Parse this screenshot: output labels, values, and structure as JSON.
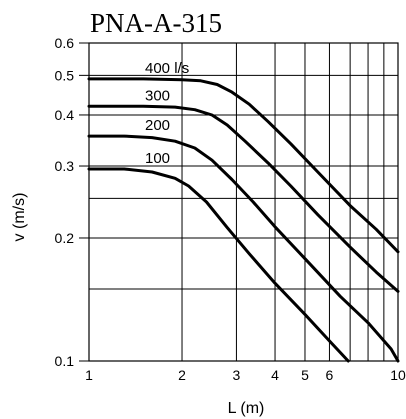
{
  "chart_data": {
    "type": "line",
    "title": "PNA-A-315",
    "xlabel": "L (m)",
    "ylabel": "v (m/s)",
    "xscale": "log",
    "yscale": "log",
    "xlim": [
      1,
      10
    ],
    "ylim": [
      0.1,
      0.6
    ],
    "x_ticks": [
      1,
      2,
      3,
      4,
      5,
      6,
      10
    ],
    "x_tick_labels": [
      "1",
      "2",
      "3",
      "4",
      "5",
      "6",
      "10"
    ],
    "x_grid": [
      1,
      2,
      3,
      4,
      5,
      6,
      7,
      8,
      9,
      10
    ],
    "y_ticks": [
      0.1,
      0.2,
      0.3,
      0.4,
      0.5,
      0.6
    ],
    "y_tick_labels": [
      "0.1",
      "0.2",
      "0.3",
      "0.4",
      "0.5",
      "0.6"
    ],
    "y_grid": [
      0.1,
      0.15,
      0.2,
      0.25,
      0.3,
      0.4,
      0.5,
      0.6
    ],
    "grid": true,
    "series": [
      {
        "name": "400 l/s",
        "x": [
          1,
          1.5,
          2.0,
          2.3,
          2.6,
          2.9,
          3.3,
          3.8,
          4.5,
          5.5,
          7,
          8.5,
          10
        ],
        "y": [
          0.49,
          0.49,
          0.488,
          0.485,
          0.475,
          0.455,
          0.425,
          0.385,
          0.34,
          0.29,
          0.24,
          0.21,
          0.185
        ]
      },
      {
        "name": "300",
        "x": [
          1,
          1.5,
          1.9,
          2.2,
          2.5,
          2.8,
          3.2,
          3.8,
          4.5,
          5.5,
          7,
          8.5,
          10
        ],
        "y": [
          0.42,
          0.42,
          0.418,
          0.412,
          0.4,
          0.378,
          0.345,
          0.305,
          0.268,
          0.228,
          0.19,
          0.165,
          0.148
        ]
      },
      {
        "name": "200",
        "x": [
          1,
          1.3,
          1.6,
          1.9,
          2.2,
          2.5,
          2.9,
          3.4,
          4.0,
          5.0,
          6.5,
          8.0,
          9.5,
          10
        ],
        "y": [
          0.355,
          0.355,
          0.352,
          0.345,
          0.332,
          0.31,
          0.278,
          0.245,
          0.213,
          0.178,
          0.144,
          0.124,
          0.107,
          0.1
        ]
      },
      {
        "name": "100",
        "x": [
          1,
          1.3,
          1.6,
          1.9,
          2.1,
          2.4,
          2.8,
          3.3,
          4.0,
          5.0,
          6.0,
          6.9
        ],
        "y": [
          0.295,
          0.295,
          0.29,
          0.28,
          0.268,
          0.245,
          0.212,
          0.183,
          0.155,
          0.13,
          0.112,
          0.1
        ]
      }
    ]
  }
}
